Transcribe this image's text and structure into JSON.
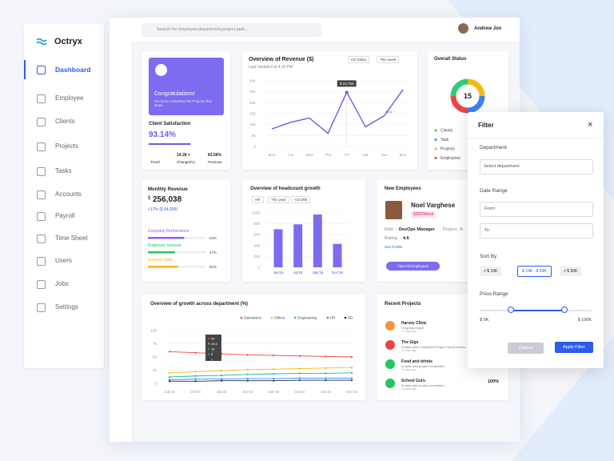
{
  "brand": "Octryx",
  "nav": [
    "Dashboard",
    "Employee",
    "Clients",
    "Projects",
    "Tasks",
    "Accounts",
    "Payroll",
    "Time Sheet",
    "Users",
    "Jobs",
    "Settings"
  ],
  "search_placeholder": "Search for employee,department,project,task...",
  "user": "Andrew Jon",
  "welcome": {
    "title": "Congratulations!",
    "text": "We have completed 80 Projects this week."
  },
  "satisfaction": {
    "title": "Client Satisfaction",
    "value": 93.14,
    "value_label": "93.14%",
    "trend": "Trend",
    "change": "14.28 +",
    "change_label": "Change(%)",
    "previous": "83.56%",
    "previous_label": "Previous"
  },
  "revenue": {
    "title": "Overview of Revenue ($)",
    "updated": "Last Updated at 4.30 PM",
    "currency": "US Dollar",
    "period": "This week",
    "chart": {
      "type": "line",
      "categories": [
        "Mon",
        "Tue",
        "Wed",
        "Thu",
        "Fri",
        "Sat",
        "Sun",
        "Mon"
      ],
      "values": [
        8000,
        11000,
        13000,
        6000,
        24763,
        9000,
        14000,
        26000
      ],
      "value_labels": [
        null,
        null,
        null,
        null,
        "$ 24,763",
        null,
        null,
        null
      ],
      "annotation": "34%",
      "color": "#6c5ce7",
      "grid": true,
      "ylim": [
        0,
        30000
      ],
      "yticks": [
        0,
        {
          "value": 5000,
          "label": "5K"
        },
        {
          "value": 10000,
          "label": "10K"
        },
        {
          "value": 15000,
          "label": "15K"
        },
        {
          "value": 20000,
          "label": "20K"
        },
        {
          "value": 25000,
          "label": "25K"
        },
        {
          "value": 30000,
          "label": "30K"
        }
      ]
    }
  },
  "status": {
    "title": "Overall Status",
    "total": 15,
    "chart": {
      "type": "pie",
      "categories": [
        "Clients",
        "Task",
        "Projects",
        "Employees"
      ],
      "values": [
        25,
        25,
        25,
        25
      ],
      "colors": [
        "#2ecc71",
        "#3b82f6",
        "#f5b914",
        "#ef4444"
      ]
    }
  },
  "monthly": {
    "title": "Monthly Revenue",
    "currency": "$",
    "amount": "256,038",
    "change": "+17% ($ 64,009)",
    "metrics": [
      {
        "name": "Company Performance",
        "value": 63,
        "label": "63%",
        "color": "#8b5cf6"
      },
      {
        "name": "Employee turnover",
        "value": 47,
        "label": "47%",
        "color": "#22c55e"
      },
      {
        "name": "Success Rate",
        "value": 52,
        "label": "52%",
        "color": "#f5b914"
      }
    ]
  },
  "headcount": {
    "title": "Overview of headcount growth",
    "filters": [
      "HR",
      "This year",
      "<10,000"
    ],
    "chart": {
      "type": "bar",
      "categories": [
        "Jan'16",
        "Ap'16",
        "July'16",
        "Dec'16"
      ],
      "values": [
        700,
        790,
        970,
        430
      ],
      "color": "#7b6cf0",
      "ylim": [
        0,
        1000
      ],
      "yticks": [
        0,
        200,
        400,
        600,
        800,
        1000
      ]
    }
  },
  "employees": {
    "title": "New Employees",
    "name": "Noel Varghese",
    "salary": "$250/Week",
    "role_label": "Role :",
    "role": "DevOps Manager",
    "project_label": "Project : A",
    "rating_label": "Rating",
    "rating": 4.6,
    "link": "See Profile",
    "button": "View All Employees"
  },
  "growth": {
    "title": "Overview of growth across department (%)",
    "tooltip": [
      "54",
      "26.5",
      "16",
      "8",
      "1"
    ],
    "chart": {
      "type": "line",
      "categories": [
        "July'16",
        "Oct'16",
        "Jan'16",
        "Apr'16",
        "July'16",
        "Oct'16",
        "Jan'16",
        "Dec'16"
      ],
      "ylim": [
        0,
        100
      ],
      "yticks": [
        0,
        25,
        50,
        75,
        100
      ],
      "series": [
        {
          "name": "Operations",
          "color": "#ef4444",
          "values": [
            60,
            58,
            56,
            54,
            53,
            52,
            51,
            50
          ]
        },
        {
          "name": "Others",
          "color": "#f5b914",
          "values": [
            20,
            22,
            24,
            26,
            27,
            28,
            29,
            30
          ]
        },
        {
          "name": "Engineering",
          "color": "#14b8a6",
          "values": [
            12,
            14,
            15,
            17,
            18,
            19,
            19,
            20
          ]
        },
        {
          "name": "HR",
          "color": "#3b82f6",
          "values": [
            7,
            8,
            8,
            9,
            9,
            10,
            10,
            10
          ]
        },
        {
          "name": "BD",
          "color": "#1e293b",
          "values": [
            4,
            4,
            5,
            5,
            5,
            6,
            6,
            6
          ]
        }
      ]
    }
  },
  "projects": {
    "title": "Recent Projects",
    "items": [
      {
        "name": "Harvey Clinic",
        "desc": "Ongoing project",
        "time": "10 days ago"
      },
      {
        "name": "The Gigs",
        "desc": "3 tasks were completed.Project needs review",
        "time": "10 days ago"
      },
      {
        "name": "Food and drinks",
        "desc": "8 tasks with project completed.",
        "time": "12 days ago"
      },
      {
        "name": "School Guru",
        "desc": "3 tasks with project completed.",
        "time": "20 days ago",
        "percent": "100%"
      }
    ]
  },
  "filter": {
    "title": "Filter",
    "department_label": "Department",
    "department_placeholder": "Select department",
    "date_label": "Date Range",
    "from": "From",
    "to": "To",
    "sort_label": "Sort By",
    "sort_options": [
      "< $ 10K",
      "$ 10K - $ 50K",
      "> $ 50K"
    ],
    "price_label": "Price Range",
    "price_limits": [
      {
        "value": 0,
        "label": "$ 0K"
      },
      {
        "value": 100,
        "label": "$ 100K"
      }
    ],
    "price_selected": [
      28,
      76
    ],
    "cancel": "Cancel",
    "apply": "Apply Filter"
  }
}
